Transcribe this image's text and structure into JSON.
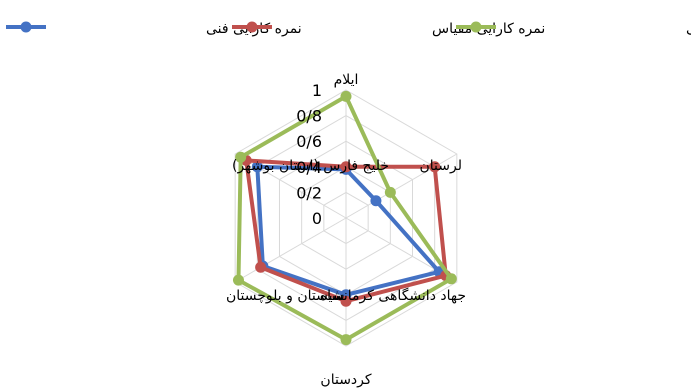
{
  "chart_data": {
    "type": "radar",
    "categories": [
      "ایلام",
      "لرستان",
      "جهاد دانشگاهی کرمانشاه",
      "کردستان",
      "سیستان و بلوچستان",
      "خلیج فارس (استان بوشهر)"
    ],
    "ticks": [
      "0",
      "0/2",
      "0/4",
      "0/6",
      "0/8",
      "1"
    ],
    "rlim": [
      0,
      1
    ],
    "grid": true,
    "legend_position": "top",
    "series": [
      {
        "name": "نمره کارایی فنی",
        "color": "#4472C4",
        "values": [
          0.38,
          0.27,
          0.84,
          0.6,
          0.75,
          0.8
        ]
      },
      {
        "name": "نمره کارایی مقیاس",
        "color": "#C0504D",
        "values": [
          0.4,
          0.8,
          0.9,
          0.65,
          0.77,
          0.9
        ]
      },
      {
        "name": "نمره کارایی مدیریتی",
        "color": "#9BBB59",
        "values": [
          0.95,
          0.4,
          0.95,
          0.95,
          0.97,
          0.95
        ]
      }
    ]
  }
}
